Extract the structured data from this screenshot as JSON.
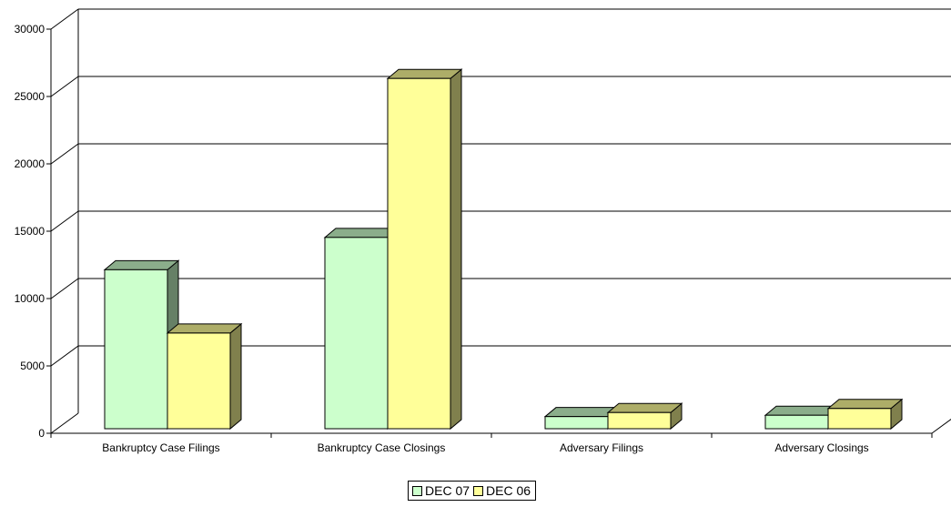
{
  "chart_data": {
    "type": "bar",
    "title": "",
    "xlabel": "",
    "ylabel": "",
    "ylim": [
      0,
      30000
    ],
    "yticks": [
      "0",
      "5000",
      "10000",
      "15000",
      "20000",
      "25000",
      "30000"
    ],
    "categories": [
      "Bankruptcy Case Filings",
      "Bankruptcy Case Closings",
      "Adversary Filings",
      "Adversary Closings"
    ],
    "series": [
      {
        "name": "DEC 07",
        "values": [
          11800,
          14200,
          900,
          1000
        ],
        "color": "#ccffcc"
      },
      {
        "name": "DEC 06",
        "values": [
          7100,
          26000,
          1200,
          1500
        ],
        "color": "#ffff99"
      }
    ],
    "grid": true,
    "legend_position": "bottom-center"
  }
}
